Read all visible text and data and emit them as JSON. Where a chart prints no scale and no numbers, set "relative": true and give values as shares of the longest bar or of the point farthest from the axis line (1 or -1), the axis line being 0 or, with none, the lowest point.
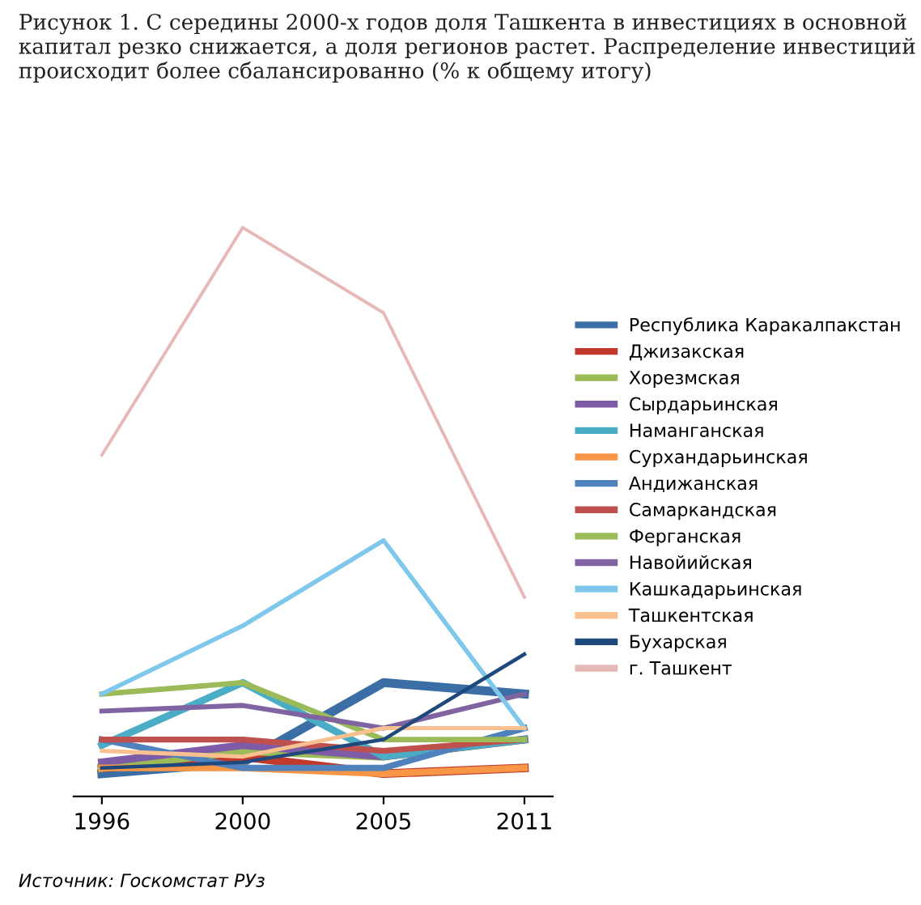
{
  "chart_data": {
    "type": "line",
    "relative": true,
    "title": "Рисунок 1. С середины 2000-х годов доля Ташкента в инвестициях в основной капитал резко снижается, а доля регионов растет. Распределение инвестиций происходит более сбалансированно (% к общему итогу)",
    "categories": [
      "1996",
      "2000",
      "2005",
      "2011"
    ],
    "legend": "right",
    "marker": "none",
    "line_style": "solid",
    "grid": false,
    "series": [
      {
        "name": "Республика Каракалпакстан",
        "color": "#3a6ea5",
        "values": [
          0.04,
          0.06,
          0.2,
          0.18
        ]
      },
      {
        "name": "Джизакская",
        "color": "#c0392b",
        "values": [
          0.05,
          0.07,
          0.04,
          0.05
        ]
      },
      {
        "name": "Хорезмская",
        "color": "#9bbb59",
        "values": [
          0.05,
          0.08,
          0.07,
          0.1
        ]
      },
      {
        "name": "Сырдарьинская",
        "color": "#7d5ba6",
        "values": [
          0.06,
          0.09,
          0.07,
          0.1
        ]
      },
      {
        "name": "Наманганская",
        "color": "#4bacc6",
        "values": [
          0.09,
          0.2,
          0.07,
          0.1
        ]
      },
      {
        "name": "Сурхандарьинская",
        "color": "#f79646",
        "values": [
          0.05,
          0.05,
          0.04,
          0.05
        ]
      },
      {
        "name": "Андижанская",
        "color": "#4f81bd",
        "values": [
          0.1,
          0.05,
          0.05,
          0.12
        ]
      },
      {
        "name": "Самаркандская",
        "color": "#c0504d",
        "values": [
          0.1,
          0.1,
          0.08,
          0.1
        ]
      },
      {
        "name": "Ферганская",
        "color": "#9bbb59",
        "values": [
          0.18,
          0.2,
          0.1,
          0.1
        ]
      },
      {
        "name": "Навойийская",
        "color": "#8064a2",
        "values": [
          0.15,
          0.16,
          0.12,
          0.18
        ]
      },
      {
        "name": "Кашкадарьинская",
        "color": "#7fc8ec",
        "values": [
          0.18,
          0.3,
          0.45,
          0.12
        ]
      },
      {
        "name": "Ташкентская",
        "color": "#fac090",
        "values": [
          0.08,
          0.07,
          0.12,
          0.12
        ]
      },
      {
        "name": "Бухарская",
        "color": "#1f497d",
        "values": [
          0.05,
          0.06,
          0.1,
          0.25
        ]
      },
      {
        "name": "г. Ташкент",
        "color": "#e6b9b8",
        "values": [
          0.6,
          1.0,
          0.85,
          0.35
        ]
      }
    ],
    "annotations": [
      "Источник: Госкомстат РУз"
    ]
  }
}
